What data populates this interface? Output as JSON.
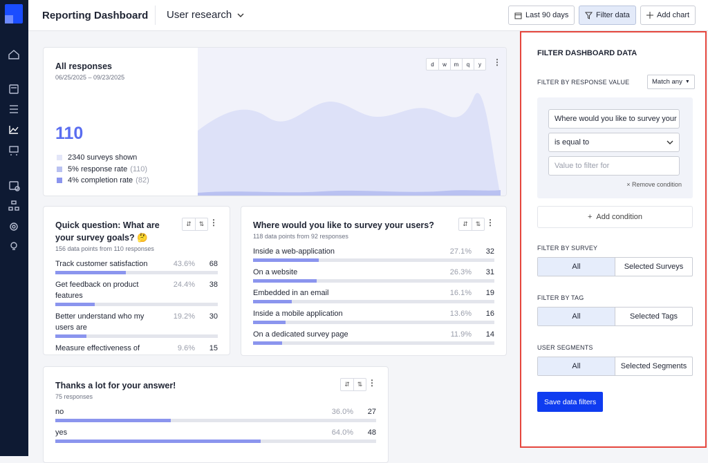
{
  "header": {
    "title": "Reporting Dashboard",
    "project": "User research",
    "buttons": [
      "Last 90 days",
      "Filter data",
      "Add chart"
    ]
  },
  "overview": {
    "title": "All responses",
    "dates": "06/25/2025 – 09/23/2025",
    "total": "110",
    "periods": [
      "d",
      "w",
      "m",
      "q",
      "y"
    ],
    "legend": [
      {
        "text": "2340 surveys shown",
        "extra": null
      },
      {
        "text": "5% response rate",
        "extra": "(110)"
      },
      {
        "text": "4% completion rate",
        "extra": "(82)"
      }
    ]
  },
  "cards": [
    {
      "title": "Quick question: What are your survey goals? 🤔",
      "subtitle": "156 data points from 110 responses",
      "rows": [
        {
          "label": "Track customer satisfaction",
          "pct": {
            "value": 43.6,
            "label": "43.6%"
          },
          "count": 68
        },
        {
          "label": "Get feedback on product features",
          "pct": {
            "value": 24.4,
            "label": "24.4%"
          },
          "count": 38
        },
        {
          "label": "Better understand who my users are",
          "pct": {
            "value": 19.2,
            "label": "19.2%"
          },
          "count": 30
        },
        {
          "label": "Measure effectiveness of",
          "pct": {
            "value": 9.6,
            "label": "9.6%"
          },
          "count": 15
        }
      ]
    },
    {
      "title": "Where would you like to survey your users?",
      "subtitle": "118 data points from 92 responses",
      "rows": [
        {
          "label": "Inside a web-application",
          "pct": {
            "value": 27.1,
            "label": "27.1%"
          },
          "count": 32
        },
        {
          "label": "On a website",
          "pct": {
            "value": 26.3,
            "label": "26.3%"
          },
          "count": 31
        },
        {
          "label": "Embedded in an email",
          "pct": {
            "value": 16.1,
            "label": "16.1%"
          },
          "count": 19
        },
        {
          "label": "Inside a mobile application",
          "pct": {
            "value": 13.6,
            "label": "13.6%"
          },
          "count": 16
        },
        {
          "label": "On a dedicated survey page",
          "pct": {
            "value": 11.9,
            "label": "11.9%"
          },
          "count": 14
        }
      ]
    },
    {
      "title": "Thanks a lot for your answer!",
      "subtitle": "75 responses",
      "rows": [
        {
          "label": "no",
          "pct": {
            "value": 36.0,
            "label": "36.0%"
          },
          "count": 27
        },
        {
          "label": "yes",
          "pct": {
            "value": 64.0,
            "label": "64.0%"
          },
          "count": 48
        }
      ]
    }
  ],
  "filter_panel": {
    "title": "FILTER DASHBOARD DATA",
    "response_title": "FILTER BY RESPONSE VALUE",
    "match": "Match any",
    "question": "Where would you like to survey your users?",
    "operator": "is equal to",
    "placeholder": "Value to filter for",
    "remove": "Remove condition",
    "add": "Add condition",
    "groups": [
      {
        "title": "FILTER BY SURVEY",
        "options": [
          "All",
          "Selected Surveys"
        ]
      },
      {
        "title": "FILTER BY TAG",
        "options": [
          "All",
          "Selected Tags"
        ]
      },
      {
        "title": "USER SEGMENTS",
        "options": [
          "All",
          "Selected Segments"
        ]
      }
    ],
    "save": "Save data filters"
  }
}
